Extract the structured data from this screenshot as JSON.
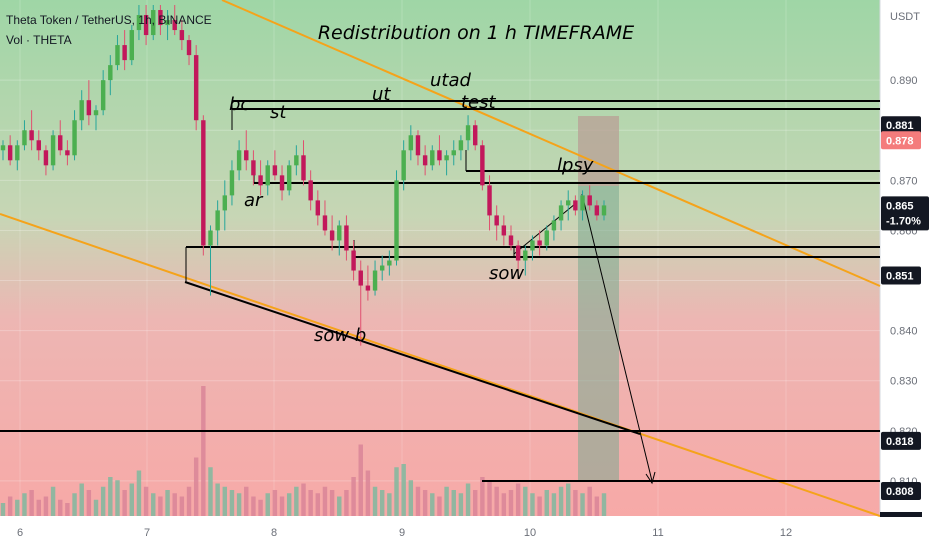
{
  "header": {
    "symbol_line": "Theta Token / TetherUS, 1h, BINANCE",
    "volume_label": "Vol · THETA"
  },
  "chart_data": {
    "type": "candlestick",
    "title": "Redistribution on 1 h TIMEFRAME",
    "y_unit": "USDT",
    "ylim": [
      0.803,
      0.906
    ],
    "x_tick_labels": [
      "6",
      "7",
      "8",
      "9",
      "10",
      "11",
      "12"
    ],
    "y_tick_labels": [
      0.89,
      0.88,
      0.87,
      0.86,
      0.85,
      0.84,
      0.83,
      0.82,
      0.81
    ],
    "price_badges": [
      {
        "value": "0.881",
        "kind": "level"
      },
      {
        "value": "0.878",
        "kind": "highlight"
      },
      {
        "value": "0.865",
        "kind": "last",
        "change": "-1.70%"
      },
      {
        "value": "0.851",
        "kind": "level"
      },
      {
        "value": "0.818",
        "kind": "level"
      },
      {
        "value": "0.808",
        "kind": "level"
      }
    ],
    "horizontal_levels": [
      0.881,
      0.878,
      0.868,
      0.865,
      0.853,
      0.851,
      0.818,
      0.808
    ],
    "annotations": [
      "bc",
      "st",
      "ar",
      "ut",
      "utad",
      "test",
      "lpsy",
      "sow",
      "sow b"
    ],
    "candles": [
      [
        0.876,
        0.878,
        0.874,
        0.877
      ],
      [
        0.877,
        0.879,
        0.873,
        0.874
      ],
      [
        0.874,
        0.878,
        0.872,
        0.877
      ],
      [
        0.877,
        0.882,
        0.876,
        0.88
      ],
      [
        0.88,
        0.884,
        0.876,
        0.878
      ],
      [
        0.878,
        0.88,
        0.874,
        0.876
      ],
      [
        0.876,
        0.877,
        0.871,
        0.873
      ],
      [
        0.873,
        0.88,
        0.872,
        0.879
      ],
      [
        0.879,
        0.882,
        0.875,
        0.876
      ],
      [
        0.876,
        0.878,
        0.873,
        0.875
      ],
      [
        0.875,
        0.884,
        0.874,
        0.882
      ],
      [
        0.882,
        0.888,
        0.88,
        0.886
      ],
      [
        0.886,
        0.89,
        0.881,
        0.883
      ],
      [
        0.883,
        0.885,
        0.88,
        0.884
      ],
      [
        0.884,
        0.892,
        0.883,
        0.89
      ],
      [
        0.89,
        0.895,
        0.887,
        0.893
      ],
      [
        0.893,
        0.899,
        0.892,
        0.897
      ],
      [
        0.897,
        0.9,
        0.892,
        0.894
      ],
      [
        0.894,
        0.901,
        0.893,
        0.9
      ],
      [
        0.9,
        0.905,
        0.898,
        0.903
      ],
      [
        0.903,
        0.905,
        0.897,
        0.899
      ],
      [
        0.899,
        0.905,
        0.898,
        0.904
      ],
      [
        0.904,
        0.905,
        0.899,
        0.901
      ],
      [
        0.901,
        0.904,
        0.898,
        0.902
      ],
      [
        0.902,
        0.905,
        0.899,
        0.9
      ],
      [
        0.9,
        0.902,
        0.896,
        0.898
      ],
      [
        0.898,
        0.899,
        0.893,
        0.895
      ],
      [
        0.895,
        0.897,
        0.88,
        0.882
      ],
      [
        0.882,
        0.883,
        0.855,
        0.857
      ],
      [
        0.857,
        0.861,
        0.847,
        0.86
      ],
      [
        0.86,
        0.866,
        0.857,
        0.864
      ],
      [
        0.864,
        0.87,
        0.86,
        0.867
      ],
      [
        0.867,
        0.874,
        0.865,
        0.872
      ],
      [
        0.872,
        0.878,
        0.87,
        0.876
      ],
      [
        0.876,
        0.88,
        0.872,
        0.874
      ],
      [
        0.874,
        0.876,
        0.869,
        0.871
      ],
      [
        0.871,
        0.874,
        0.867,
        0.869
      ],
      [
        0.869,
        0.874,
        0.867,
        0.873
      ],
      [
        0.873,
        0.876,
        0.87,
        0.871
      ],
      [
        0.871,
        0.873,
        0.866,
        0.868
      ],
      [
        0.868,
        0.874,
        0.867,
        0.873
      ],
      [
        0.873,
        0.877,
        0.871,
        0.875
      ],
      [
        0.875,
        0.878,
        0.869,
        0.87
      ],
      [
        0.87,
        0.872,
        0.864,
        0.866
      ],
      [
        0.866,
        0.868,
        0.861,
        0.863
      ],
      [
        0.863,
        0.866,
        0.859,
        0.86
      ],
      [
        0.86,
        0.863,
        0.856,
        0.858
      ],
      [
        0.858,
        0.862,
        0.855,
        0.861
      ],
      [
        0.861,
        0.863,
        0.854,
        0.856
      ],
      [
        0.856,
        0.858,
        0.85,
        0.852
      ],
      [
        0.852,
        0.854,
        0.837,
        0.849
      ],
      [
        0.849,
        0.853,
        0.846,
        0.848
      ],
      [
        0.848,
        0.854,
        0.847,
        0.852
      ],
      [
        0.852,
        0.855,
        0.85,
        0.853
      ],
      [
        0.853,
        0.856,
        0.851,
        0.854
      ],
      [
        0.854,
        0.872,
        0.853,
        0.87
      ],
      [
        0.87,
        0.878,
        0.868,
        0.876
      ],
      [
        0.876,
        0.881,
        0.874,
        0.879
      ],
      [
        0.879,
        0.88,
        0.873,
        0.875
      ],
      [
        0.875,
        0.877,
        0.871,
        0.873
      ],
      [
        0.873,
        0.877,
        0.872,
        0.876
      ],
      [
        0.876,
        0.879,
        0.873,
        0.874
      ],
      [
        0.874,
        0.876,
        0.871,
        0.875
      ],
      [
        0.875,
        0.878,
        0.873,
        0.876
      ],
      [
        0.876,
        0.879,
        0.874,
        0.878
      ],
      [
        0.878,
        0.883,
        0.876,
        0.881
      ],
      [
        0.881,
        0.882,
        0.876,
        0.877
      ],
      [
        0.877,
        0.878,
        0.868,
        0.869
      ],
      [
        0.869,
        0.871,
        0.86,
        0.863
      ],
      [
        0.863,
        0.865,
        0.858,
        0.861
      ],
      [
        0.861,
        0.863,
        0.857,
        0.859
      ],
      [
        0.859,
        0.861,
        0.856,
        0.857
      ],
      [
        0.857,
        0.858,
        0.852,
        0.854
      ],
      [
        0.854,
        0.857,
        0.851,
        0.856
      ],
      [
        0.856,
        0.859,
        0.854,
        0.858
      ],
      [
        0.858,
        0.86,
        0.855,
        0.857
      ],
      [
        0.857,
        0.861,
        0.856,
        0.86
      ],
      [
        0.86,
        0.863,
        0.858,
        0.862
      ],
      [
        0.862,
        0.866,
        0.86,
        0.865
      ],
      [
        0.865,
        0.868,
        0.862,
        0.866
      ],
      [
        0.866,
        0.867,
        0.863,
        0.864
      ],
      [
        0.864,
        0.868,
        0.862,
        0.867
      ],
      [
        0.867,
        0.869,
        0.864,
        0.865
      ],
      [
        0.865,
        0.866,
        0.862,
        0.863
      ],
      [
        0.863,
        0.866,
        0.862,
        0.865
      ]
    ],
    "volumes": [
      4,
      6,
      5,
      7,
      8,
      5,
      6,
      9,
      5,
      4,
      7,
      10,
      8,
      5,
      9,
      12,
      11,
      8,
      10,
      14,
      9,
      7,
      6,
      8,
      7,
      6,
      9,
      18,
      40,
      15,
      10,
      9,
      8,
      7,
      9,
      6,
      5,
      7,
      8,
      6,
      7,
      9,
      10,
      8,
      7,
      9,
      8,
      6,
      8,
      12,
      22,
      14,
      9,
      8,
      7,
      15,
      16,
      11,
      9,
      8,
      7,
      6,
      9,
      8,
      7,
      10,
      8,
      12,
      11,
      9,
      7,
      8,
      10,
      9,
      7,
      6,
      8,
      7,
      9,
      10,
      8,
      7,
      9,
      6,
      7
    ]
  }
}
